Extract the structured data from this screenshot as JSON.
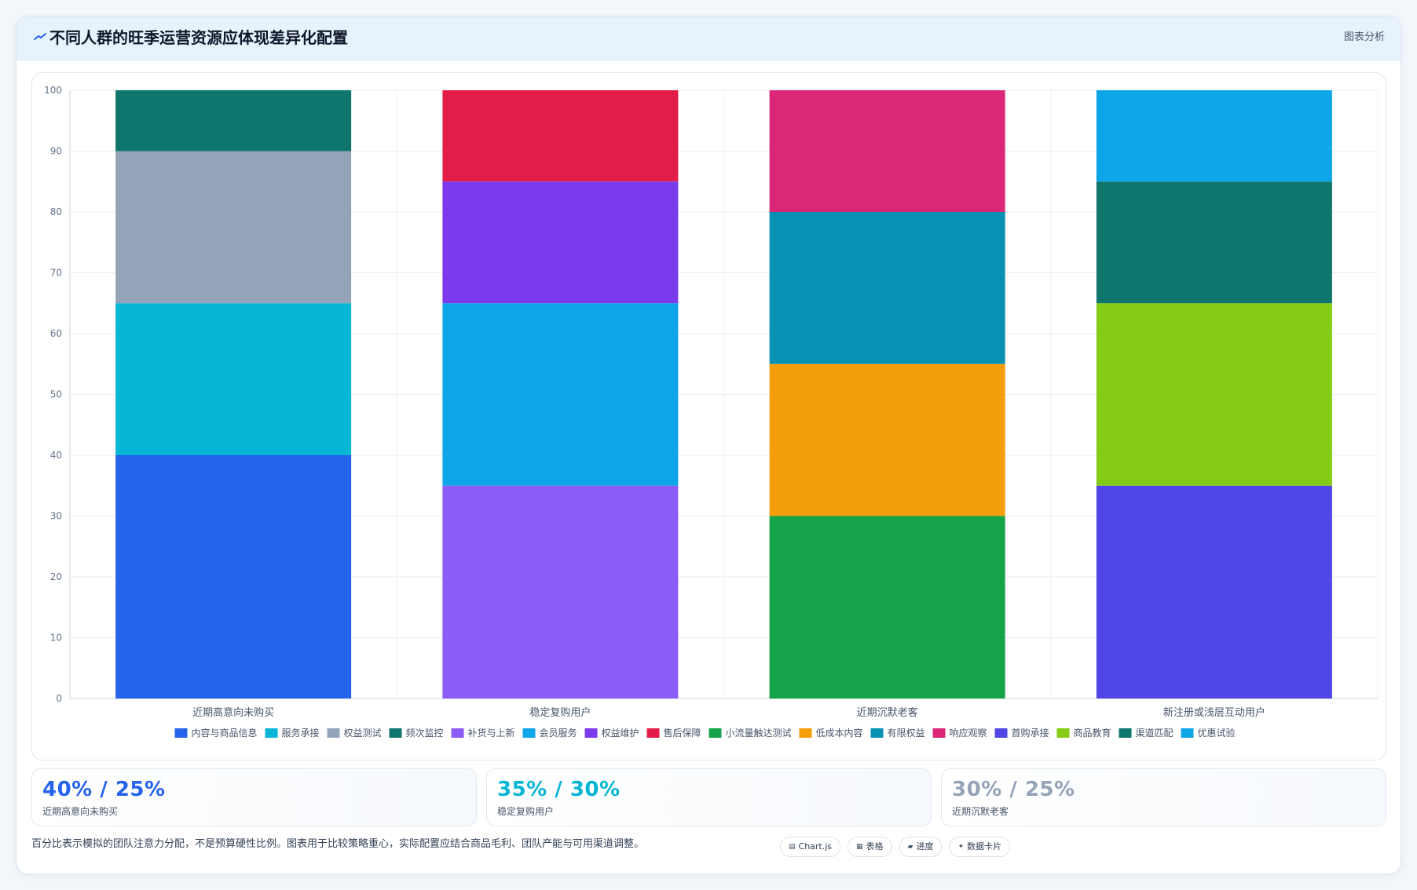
{
  "header": {
    "title": "不同人群的旺季运营资源应体现差异化配置",
    "action_label": "图表分析",
    "icon": "trend-line-icon"
  },
  "chart_data": {
    "type": "bar",
    "stacked": true,
    "categories": [
      "近期高意向未购买",
      "稳定复购用户",
      "近期沉默老客",
      "新注册或浅层互动用户"
    ],
    "ylim": [
      0,
      100
    ],
    "yticks": [
      0,
      10,
      20,
      30,
      40,
      50,
      60,
      70,
      80,
      90,
      100
    ],
    "grid": true,
    "legend_position": "bottom",
    "series": [
      {
        "name": "内容与商品信息",
        "color": "#2563eb",
        "values": [
          40,
          null,
          null,
          null
        ]
      },
      {
        "name": "服务承接",
        "color": "#06b6d4",
        "values": [
          25,
          null,
          null,
          null
        ]
      },
      {
        "name": "权益测试",
        "color": "#94a3b8",
        "values": [
          25,
          null,
          null,
          null
        ]
      },
      {
        "name": "频次监控",
        "color": "#0f766e",
        "values": [
          10,
          null,
          null,
          null
        ]
      },
      {
        "name": "补货与上新",
        "color": "#8b5cf6",
        "values": [
          null,
          35,
          null,
          null
        ]
      },
      {
        "name": "会员服务",
        "color": "#0ea5e9",
        "values": [
          null,
          30,
          null,
          null
        ]
      },
      {
        "name": "权益维护",
        "color": "#7c3aed",
        "values": [
          null,
          20,
          null,
          null
        ]
      },
      {
        "name": "售后保障",
        "color": "#e11d48",
        "values": [
          null,
          15,
          null,
          null
        ]
      },
      {
        "name": "小流量触达测试",
        "color": "#16a34a",
        "values": [
          null,
          null,
          30,
          null
        ]
      },
      {
        "name": "低成本内容",
        "color": "#f59e0b",
        "values": [
          null,
          null,
          25,
          null
        ]
      },
      {
        "name": "有限权益",
        "color": "#0891b2",
        "values": [
          null,
          null,
          25,
          null
        ]
      },
      {
        "name": "响应观察",
        "color": "#db2777",
        "values": [
          null,
          null,
          20,
          null
        ]
      },
      {
        "name": "首购承接",
        "color": "#4f46e5",
        "values": [
          null,
          null,
          null,
          35
        ]
      },
      {
        "name": "商品教育",
        "color": "#84cc16",
        "values": [
          null,
          null,
          null,
          30
        ]
      },
      {
        "name": "渠道匹配",
        "color": "#0f766e",
        "values": [
          null,
          null,
          null,
          20
        ]
      },
      {
        "name": "优惠试验",
        "color": "#0ea5e9",
        "values": [
          null,
          null,
          null,
          15
        ]
      }
    ]
  },
  "stats": [
    {
      "value": "40% / 25%",
      "label": "近期高意向未购买",
      "color": "#2563eb"
    },
    {
      "value": "35% / 30%",
      "label": "稳定复购用户",
      "color": "#06b6d4"
    },
    {
      "value": "30% / 25%",
      "label": "近期沉默老客",
      "color": "#94a3b8"
    }
  ],
  "footer": {
    "note": "百分比表示模拟的团队注意力分配，不是预算硬性比例。图表用于比较策略重心，实际配置应结合商品毛利、团队产能与可用渠道调整。",
    "buttons": [
      {
        "icon": "▤",
        "icon_name": "chart-icon",
        "label": "Chart.js"
      },
      {
        "icon": "▦",
        "icon_name": "table-icon",
        "label": "表格"
      },
      {
        "icon": "▰",
        "icon_name": "progress-icon",
        "label": "进度"
      },
      {
        "icon": "✦",
        "icon_name": "sparkle-icon",
        "label": "数据卡片"
      }
    ]
  }
}
